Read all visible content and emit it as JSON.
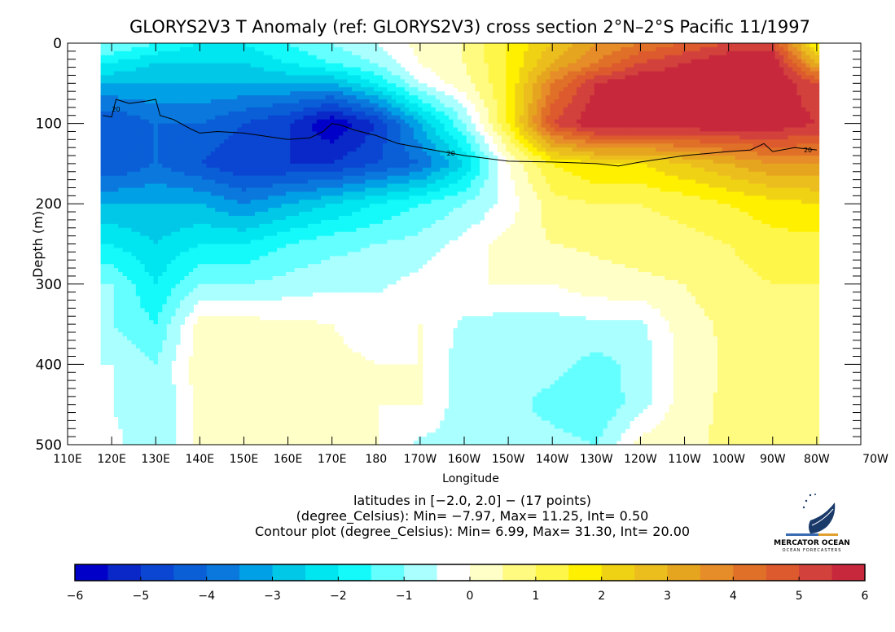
{
  "chart_data": {
    "type": "heatmap",
    "title": "GLORYS2V3 T Anomaly (ref: GLORYS2V3) cross section 2°N–2°S Pacific 11/1997",
    "xlabel": "Longitude",
    "ylabel": "Depth (m)",
    "xlim": [
      110,
      290
    ],
    "ylim": [
      0,
      500
    ],
    "y_inverted": true,
    "x_ticks": [
      110,
      120,
      130,
      140,
      150,
      160,
      170,
      180,
      190,
      200,
      210,
      220,
      230,
      240,
      250,
      260,
      270,
      280,
      290
    ],
    "x_tick_labels": [
      "110E",
      "120E",
      "130E",
      "140E",
      "150E",
      "160E",
      "170E",
      "180",
      "170W",
      "160W",
      "150W",
      "140W",
      "130W",
      "120W",
      "110W",
      "100W",
      "90W",
      "80W",
      "70W"
    ],
    "y_ticks": [
      0,
      100,
      200,
      300,
      400,
      500
    ],
    "y_tick_labels": [
      "0",
      "100",
      "200",
      "300",
      "400",
      "500"
    ],
    "grid": false,
    "grid_lon": [
      120,
      130,
      140,
      150,
      160,
      170,
      180,
      190,
      200,
      210,
      220,
      230,
      240,
      250,
      260,
      270,
      280
    ],
    "grid_depth": [
      0,
      25,
      50,
      100,
      150,
      200,
      250,
      300,
      350,
      400,
      450,
      500
    ],
    "anomaly_degC": [
      [
        -1,
        -2,
        -3,
        -4.5,
        -4.5,
        -3,
        -2,
        -1,
        -1,
        -0.5,
        -0.5,
        -0.3
      ],
      [
        -1.5,
        -2.5,
        -3,
        -4,
        -4,
        -3,
        -2.5,
        -2,
        -1.5,
        -1,
        -1,
        -1
      ],
      [
        -2,
        -2.5,
        -3,
        -4,
        -4.5,
        -3,
        -2,
        -1,
        0.2,
        0.3,
        0.2,
        0.2
      ],
      [
        -2,
        -2.5,
        -3,
        -4.5,
        -5,
        -3.5,
        -2,
        -1,
        0.2,
        0.3,
        0.3,
        0.2
      ],
      [
        -1.5,
        -2,
        -3,
        -5,
        -5,
        -3,
        -1.5,
        -0.8,
        0.1,
        0.2,
        0.2,
        0.1
      ],
      [
        -1,
        -1.5,
        -3,
        -6,
        -5,
        -2.5,
        -1.2,
        -0.6,
        0,
        0.1,
        0.1,
        0
      ],
      [
        -0.5,
        -1,
        -2,
        -5,
        -4.5,
        -2,
        -1,
        -0.6,
        -0.2,
        0,
        0,
        0
      ],
      [
        0.2,
        0,
        -0.5,
        -3,
        -4,
        -1.5,
        -0.8,
        -0.3,
        0,
        0,
        0,
        -0.6
      ],
      [
        0.5,
        0.5,
        0.3,
        -1,
        -2.5,
        -1,
        -0.3,
        0,
        -0.6,
        -0.8,
        -0.8,
        -0.7
      ],
      [
        1.5,
        1.5,
        1.5,
        1.5,
        0,
        -0.3,
        0.2,
        0,
        -0.7,
        -0.8,
        -0.8,
        -0.8
      ],
      [
        2.5,
        3,
        4,
        5,
        1.5,
        0.8,
        0.5,
        0,
        -0.7,
        -0.8,
        -1.2,
        -0.8
      ],
      [
        3.5,
        4,
        5.5,
        6,
        2,
        1,
        0.6,
        0.3,
        -0.6,
        -1.2,
        -1.5,
        -1
      ],
      [
        4,
        5,
        6,
        6,
        2,
        1,
        0.7,
        0.4,
        -0.6,
        -0.8,
        -0.7,
        0.2
      ],
      [
        4.5,
        5.5,
        6,
        6,
        2.5,
        1.2,
        0.8,
        0.5,
        0.3,
        0.2,
        0.3,
        0.4
      ],
      [
        5,
        6,
        6,
        6,
        3,
        1.5,
        1,
        0.8,
        0.6,
        0.6,
        0.6,
        0.6
      ],
      [
        5,
        6,
        6,
        6,
        3.5,
        1.8,
        1.3,
        1,
        0.8,
        0.8,
        0.7,
        0.7
      ],
      [
        1.5,
        3,
        5,
        5.5,
        3.5,
        2,
        1.3,
        1,
        0.9,
        0.8,
        0.7,
        0.6
      ]
    ],
    "data_lon_range": [
      117.5,
      280
    ],
    "contour": {
      "label": "20",
      "points": [
        [
          118,
          90
        ],
        [
          120,
          92
        ],
        [
          121,
          70
        ],
        [
          124,
          75
        ],
        [
          128,
          72
        ],
        [
          130,
          70
        ],
        [
          131,
          90
        ],
        [
          134,
          95
        ],
        [
          138,
          107
        ],
        [
          140,
          112
        ],
        [
          144,
          110
        ],
        [
          150,
          112
        ],
        [
          160,
          120
        ],
        [
          165,
          118
        ],
        [
          168,
          110
        ],
        [
          170,
          100
        ],
        [
          172,
          102
        ],
        [
          175,
          108
        ],
        [
          180,
          115
        ],
        [
          185,
          125
        ],
        [
          190,
          130
        ],
        [
          195,
          135
        ],
        [
          200,
          140
        ],
        [
          210,
          147
        ],
        [
          220,
          148
        ],
        [
          230,
          150
        ],
        [
          235,
          153
        ],
        [
          240,
          148
        ],
        [
          250,
          140
        ],
        [
          260,
          135
        ],
        [
          265,
          133
        ],
        [
          268,
          125
        ],
        [
          270,
          135
        ],
        [
          275,
          130
        ],
        [
          280,
          133
        ]
      ],
      "label_positions": [
        [
          121,
          82
        ],
        [
          197,
          137
        ],
        [
          278,
          133
        ]
      ]
    },
    "colorbar": {
      "min": -6,
      "max": 6,
      "step": 0.5,
      "tick_labels": [
        "-6",
        "-5",
        "-4",
        "-3",
        "-2",
        "-1",
        "0",
        "1",
        "2",
        "3",
        "4",
        "5",
        "6"
      ],
      "colors": [
        "#0000c8",
        "#0a28c8",
        "#0a46d2",
        "#0a5fd7",
        "#0a78dc",
        "#00a0e6",
        "#00c8e6",
        "#00e6f0",
        "#14fafa",
        "#64ffff",
        "#aaffff",
        "#ffffff",
        "#ffffc8",
        "#fffa80",
        "#fff64a",
        "#fff000",
        "#f0d214",
        "#ebbe1e",
        "#e6a51e",
        "#e68c28",
        "#e07028",
        "#dc5a2d",
        "#d2413c",
        "#c8283c"
      ]
    }
  },
  "info": {
    "line1": "latitudes in [−2.0, 2.0] − (17 points)",
    "line2": "(degree_Celsius): Min= −7.97, Max= 11.25, Int= 0.50",
    "line3": "Contour plot (degree_Celsius): Min= 6.99, Max= 31.30, Int= 20.00"
  },
  "logo": {
    "name": "MERCATOR OCEAN",
    "tagline": "OCEAN FORECASTERS"
  }
}
